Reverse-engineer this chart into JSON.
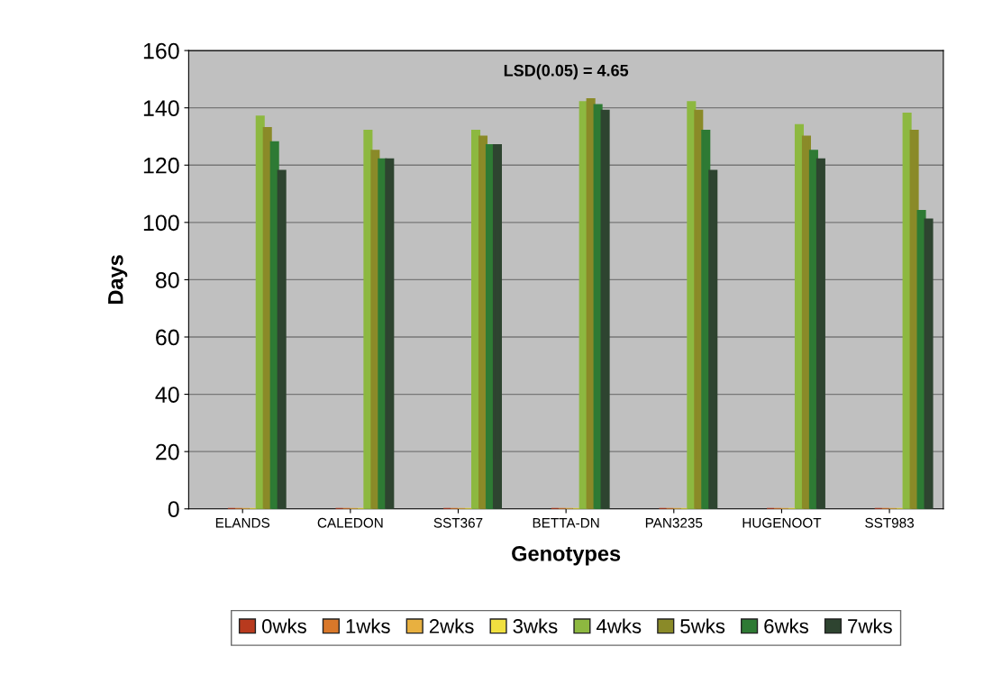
{
  "chart_data": {
    "type": "bar",
    "xlabel": "Genotypes",
    "ylabel": "Days",
    "categories": [
      "ELANDS",
      "CALEDON",
      "SST367",
      "BETTA-DN",
      "PAN3235",
      "HUGENOOT",
      "SST983"
    ],
    "series": [
      {
        "name": "0wks",
        "color": "#b83a1e",
        "values": [
          0,
          0,
          0,
          0,
          0,
          0,
          0
        ]
      },
      {
        "name": "1wks",
        "color": "#d9782a",
        "values": [
          0,
          0,
          0,
          0,
          0,
          0,
          0
        ]
      },
      {
        "name": "2wks",
        "color": "#e8b040",
        "values": [
          0,
          0,
          0,
          0,
          0,
          0,
          0
        ]
      },
      {
        "name": "3wks",
        "color": "#f0e040",
        "values": [
          0,
          0,
          0,
          0,
          0,
          0,
          0
        ]
      },
      {
        "name": "4wks",
        "color": "#8db840",
        "values": [
          137,
          132,
          132,
          142,
          142,
          134,
          138
        ]
      },
      {
        "name": "5wks",
        "color": "#8a8a28",
        "values": [
          133,
          125,
          130,
          143,
          139,
          130,
          132
        ]
      },
      {
        "name": "6wks",
        "color": "#2e7a34",
        "values": [
          128,
          122,
          127,
          141,
          132,
          125,
          104
        ]
      },
      {
        "name": "7wks",
        "color": "#2e4430",
        "values": [
          118,
          122,
          127,
          139,
          118,
          122,
          101
        ]
      }
    ],
    "ylim": [
      0,
      160
    ],
    "yticks": [
      0,
      20,
      40,
      60,
      80,
      100,
      120,
      140,
      160
    ],
    "grid": "y",
    "legend": "bottom",
    "annotations": [
      "LSD(0.05) = 4.65"
    ]
  }
}
